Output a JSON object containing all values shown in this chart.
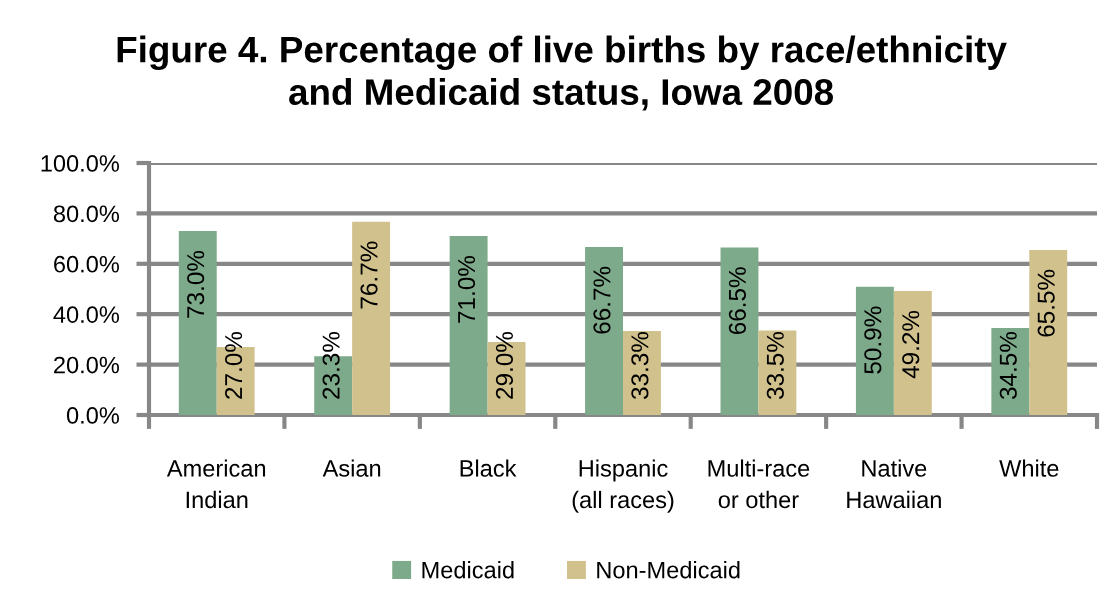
{
  "chart_data": {
    "type": "bar",
    "title": "Figure 4. Percentage of live births by race/ethnicity\nand Medicaid status, Iowa 2008",
    "categories": [
      "American\nIndian",
      "Asian",
      "Black",
      "Hispanic\n(all races)",
      "Multi-race\nor other",
      "Native\nHawaiian",
      "White"
    ],
    "series": [
      {
        "name": "Medicaid",
        "color": "#7daa8a",
        "values": [
          73.0,
          23.3,
          71.0,
          66.7,
          66.5,
          50.9,
          34.5
        ],
        "value_labels": [
          "73.0%",
          "23.3%",
          "71.0%",
          "66.7%",
          "66.5%",
          "50.9%",
          "34.5%"
        ]
      },
      {
        "name": "Non-Medicaid",
        "color": "#d1c18c",
        "values": [
          27.0,
          76.7,
          29.0,
          33.3,
          33.5,
          49.2,
          65.5
        ],
        "value_labels": [
          "27.0%",
          "76.7%",
          "29.0%",
          "33.3%",
          "33.5%",
          "49.2%",
          "65.5%"
        ]
      }
    ],
    "ylim": [
      0,
      100
    ],
    "yticks": [
      {
        "value": 0,
        "label": "0.0%"
      },
      {
        "value": 20,
        "label": "20.0%"
      },
      {
        "value": 40,
        "label": "40.0%"
      },
      {
        "value": 60,
        "label": "60.0%"
      },
      {
        "value": 80,
        "label": "80.0%"
      },
      {
        "value": 100,
        "label": "100.0%"
      }
    ],
    "grid": "y",
    "legend": "bottom"
  }
}
